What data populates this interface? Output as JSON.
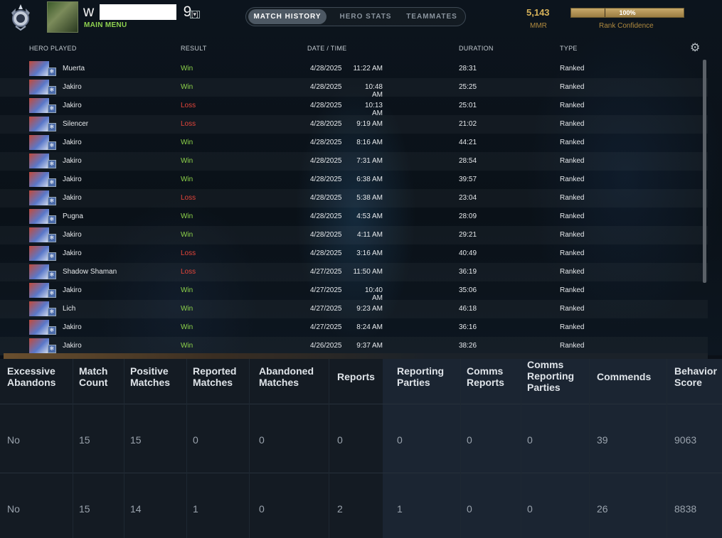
{
  "header": {
    "player_name_prefix": "w",
    "player_name_suffix": "9",
    "caret": "[▾]",
    "main_menu": "MAIN MENU",
    "tabs": [
      "MATCH HISTORY",
      "HERO STATS",
      "TEAMMATES"
    ],
    "active_tab": 0,
    "mmr": "5,143",
    "mmr_label": "MMR",
    "rank_confidence_percent": 100,
    "rank_confidence_text": "100%",
    "rank_confidence_label": "Rank Confidence"
  },
  "match_table": {
    "columns": [
      "HERO PLAYED",
      "RESULT",
      "DATE / TIME",
      "DURATION",
      "TYPE"
    ],
    "rows": [
      {
        "hero": "Muerta",
        "result": "Win",
        "date": "4/28/2025",
        "time": "11:22 AM",
        "duration": "28:31",
        "type": "Ranked"
      },
      {
        "hero": "Jakiro",
        "result": "Win",
        "date": "4/28/2025",
        "time": "10:48 AM",
        "duration": "25:25",
        "type": "Ranked"
      },
      {
        "hero": "Jakiro",
        "result": "Loss",
        "date": "4/28/2025",
        "time": "10:13 AM",
        "duration": "25:01",
        "type": "Ranked"
      },
      {
        "hero": "Silencer",
        "result": "Loss",
        "date": "4/28/2025",
        "time": "9:19 AM",
        "duration": "21:02",
        "type": "Ranked"
      },
      {
        "hero": "Jakiro",
        "result": "Win",
        "date": "4/28/2025",
        "time": "8:16 AM",
        "duration": "44:21",
        "type": "Ranked"
      },
      {
        "hero": "Jakiro",
        "result": "Win",
        "date": "4/28/2025",
        "time": "7:31 AM",
        "duration": "28:54",
        "type": "Ranked"
      },
      {
        "hero": "Jakiro",
        "result": "Win",
        "date": "4/28/2025",
        "time": "6:38 AM",
        "duration": "39:57",
        "type": "Ranked"
      },
      {
        "hero": "Jakiro",
        "result": "Loss",
        "date": "4/28/2025",
        "time": "5:38 AM",
        "duration": "23:04",
        "type": "Ranked"
      },
      {
        "hero": "Pugna",
        "result": "Win",
        "date": "4/28/2025",
        "time": "4:53 AM",
        "duration": "28:09",
        "type": "Ranked"
      },
      {
        "hero": "Jakiro",
        "result": "Win",
        "date": "4/28/2025",
        "time": "4:11 AM",
        "duration": "29:21",
        "type": "Ranked"
      },
      {
        "hero": "Jakiro",
        "result": "Loss",
        "date": "4/28/2025",
        "time": "3:16 AM",
        "duration": "40:49",
        "type": "Ranked"
      },
      {
        "hero": "Shadow Shaman",
        "result": "Loss",
        "date": "4/27/2025",
        "time": "11:50 AM",
        "duration": "36:19",
        "type": "Ranked"
      },
      {
        "hero": "Jakiro",
        "result": "Win",
        "date": "4/27/2025",
        "time": "10:40 AM",
        "duration": "35:06",
        "type": "Ranked"
      },
      {
        "hero": "Lich",
        "result": "Win",
        "date": "4/27/2025",
        "time": "9:23 AM",
        "duration": "46:18",
        "type": "Ranked"
      },
      {
        "hero": "Jakiro",
        "result": "Win",
        "date": "4/27/2025",
        "time": "8:24 AM",
        "duration": "36:16",
        "type": "Ranked"
      },
      {
        "hero": "Jakiro",
        "result": "Win",
        "date": "4/26/2025",
        "time": "9:37 AM",
        "duration": "38:26",
        "type": "Ranked"
      }
    ]
  },
  "behavior_table": {
    "headers": [
      [
        "Excessive",
        "Abandons"
      ],
      [
        "Match",
        "Count"
      ],
      [
        "Positive",
        "Matches"
      ],
      [
        "Reported",
        "Matches"
      ],
      [
        "Abandoned",
        "Matches"
      ],
      [
        "Reports"
      ],
      [
        "Reporting",
        "Parties"
      ],
      [
        "Comms",
        "Reports"
      ],
      [
        "Comms",
        "Reporting",
        "Parties"
      ],
      [
        "Commends"
      ],
      [
        "Behavior",
        "Score"
      ]
    ],
    "rows": [
      [
        "No",
        "15",
        "15",
        "0",
        "0",
        "0",
        "0",
        "0",
        "0",
        "39",
        "9063"
      ],
      [
        "No",
        "15",
        "14",
        "1",
        "0",
        "2",
        "1",
        "0",
        "0",
        "26",
        "8838"
      ]
    ]
  },
  "colors": {
    "win": "#8dd34a",
    "loss": "#e4453a",
    "mmr_gold": "#d7b35a",
    "main_menu_green": "#8fd14f"
  },
  "icons": [
    "rank-medal-icon",
    "player-avatar",
    "dropdown-caret-icon",
    "gear-icon",
    "hero-portrait-icon"
  ]
}
